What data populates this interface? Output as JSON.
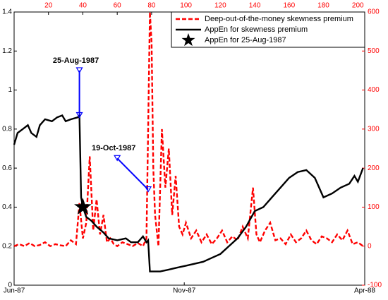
{
  "chart_data": {
    "type": "line",
    "series": [
      {
        "name": "Deep-out-of-the-money skewness premium",
        "color": "#ff0000",
        "style": "dashed",
        "axis": "y2",
        "x": [
          0,
          3,
          6,
          9,
          12,
          15,
          18,
          21,
          24,
          27,
          30,
          33,
          36,
          38,
          40,
          42,
          44,
          46,
          48,
          50,
          52,
          54,
          56,
          58,
          60,
          63,
          66,
          69,
          72,
          75,
          77,
          78,
          79,
          80,
          81,
          82,
          84,
          86,
          88,
          90,
          92,
          94,
          96,
          98,
          100,
          103,
          106,
          109,
          112,
          115,
          118,
          121,
          124,
          127,
          130,
          133,
          136,
          139,
          141,
          143,
          146,
          149,
          152,
          155,
          158,
          161,
          164,
          167,
          170,
          173,
          176,
          179,
          182,
          185,
          188,
          191,
          194,
          197,
          200,
          203
        ],
        "values": [
          0,
          5,
          0,
          8,
          0,
          3,
          10,
          0,
          5,
          2,
          0,
          15,
          5,
          110,
          20,
          60,
          230,
          40,
          120,
          30,
          80,
          10,
          20,
          5,
          0,
          10,
          5,
          0,
          8,
          0,
          20,
          300,
          600,
          520,
          200,
          80,
          0,
          300,
          150,
          250,
          80,
          180,
          50,
          30,
          60,
          20,
          40,
          10,
          30,
          5,
          20,
          40,
          10,
          25,
          15,
          50,
          20,
          150,
          30,
          10,
          40,
          60,
          15,
          20,
          5,
          30,
          10,
          20,
          40,
          15,
          5,
          25,
          20,
          10,
          30,
          15,
          40,
          5,
          10,
          0
        ]
      },
      {
        "name": "AppEn for skewness premium",
        "color": "#000000",
        "style": "solid",
        "x": [
          0,
          2,
          5,
          8,
          10,
          13,
          15,
          18,
          22,
          25,
          28,
          30,
          33,
          37,
          38,
          39,
          40,
          42,
          45,
          48,
          52,
          55,
          60,
          65,
          68,
          72,
          75,
          77,
          78,
          79,
          85,
          90,
          95,
          100,
          110,
          115,
          120,
          125,
          130,
          135,
          140,
          145,
          150,
          155,
          160,
          165,
          170,
          175,
          180,
          185,
          190,
          195,
          198,
          200,
          203
        ],
        "values": [
          0.72,
          0.78,
          0.8,
          0.82,
          0.78,
          0.76,
          0.82,
          0.85,
          0.84,
          0.86,
          0.87,
          0.84,
          0.85,
          0.86,
          0.87,
          0.45,
          0.4,
          0.35,
          0.33,
          0.3,
          0.27,
          0.24,
          0.23,
          0.24,
          0.22,
          0.22,
          0.25,
          0.22,
          0.23,
          0.07,
          0.07,
          0.08,
          0.09,
          0.1,
          0.12,
          0.14,
          0.16,
          0.2,
          0.24,
          0.3,
          0.38,
          0.4,
          0.45,
          0.5,
          0.55,
          0.58,
          0.59,
          0.55,
          0.45,
          0.47,
          0.5,
          0.52,
          0.56,
          0.53,
          0.6
        ]
      },
      {
        "name": "AppEn for 25-Aug-1987",
        "color": "#000000",
        "style": "star",
        "x": [
          40
        ],
        "values": [
          0.4
        ]
      }
    ],
    "annotations": [
      {
        "text": "25-Aug-1987",
        "xytext": [
          38,
          1.1
        ],
        "xy": [
          38,
          0.87
        ]
      },
      {
        "text": "19-Oct-1987",
        "xytext": [
          60,
          0.65
        ],
        "xy": [
          78,
          0.49
        ]
      }
    ],
    "xlim": [
      0,
      204
    ],
    "x2ticks": [
      20,
      40,
      60,
      80,
      100,
      120,
      140,
      160,
      180,
      200
    ],
    "xticks": [
      {
        "value": 0,
        "label": "Jun-87"
      },
      {
        "value": 99,
        "label": "Nov-87"
      },
      {
        "value": 204,
        "label": "Apr-88"
      }
    ],
    "ylim": [
      0,
      1.4
    ],
    "yticks": [
      0,
      0.2,
      0.4,
      0.6,
      0.8,
      1,
      1.2,
      1.4
    ],
    "y2lim": [
      -100,
      600
    ],
    "y2ticks": [
      -100,
      0,
      100,
      200,
      300,
      400,
      500,
      600
    ],
    "y2color": "#ff0000",
    "annotation_color": "#0000ff",
    "legend": "northeast"
  }
}
